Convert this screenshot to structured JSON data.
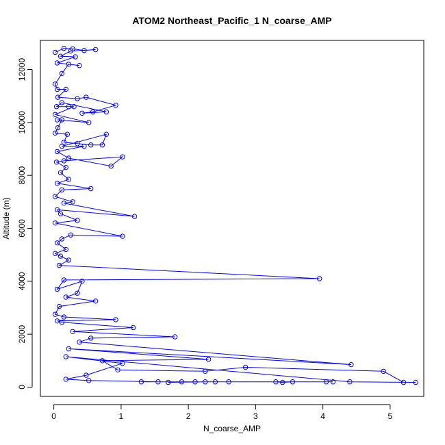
{
  "chart_data": {
    "type": "line",
    "title": "ATOM2 Northeast_Pacific_1 N_coarse_AMP",
    "xlabel": "N_coarse_AMP",
    "ylabel": "Altitude (m)",
    "xlim": [
      -0.2,
      5.5
    ],
    "ylim": [
      -350,
      13100
    ],
    "x_ticks": [
      0,
      1,
      2,
      3,
      4,
      5
    ],
    "y_ticks": [
      0,
      2000,
      4000,
      6000,
      8000,
      10000,
      12000
    ],
    "grid": false,
    "marker": "open-circle",
    "color": "#0000ff",
    "series": [
      {
        "points": [
          [
            0.02,
            12650
          ],
          [
            0.15,
            12800
          ],
          [
            0.28,
            12780
          ],
          [
            0.45,
            12720
          ],
          [
            0.62,
            12750
          ],
          [
            0.25,
            12700
          ],
          [
            0.1,
            12500
          ],
          [
            0.32,
            12480
          ],
          [
            0.05,
            12250
          ],
          [
            0.38,
            12150
          ],
          [
            0.22,
            12200
          ],
          [
            0.12,
            11850
          ],
          [
            0.02,
            11450
          ],
          [
            0.05,
            11250
          ],
          [
            0.18,
            11250
          ],
          [
            0.06,
            10950
          ],
          [
            0.35,
            10900
          ],
          [
            0.48,
            10950
          ],
          [
            0.92,
            10650
          ],
          [
            0.58,
            10400
          ],
          [
            0.42,
            10350
          ],
          [
            0.78,
            10400
          ],
          [
            0.12,
            10750
          ],
          [
            0.04,
            10600
          ],
          [
            0.22,
            10600
          ],
          [
            0.3,
            10600
          ],
          [
            0.02,
            10300
          ],
          [
            0.52,
            10000
          ],
          [
            0.05,
            10100
          ],
          [
            0.12,
            10100
          ],
          [
            0.06,
            9800
          ],
          [
            0.02,
            9600
          ],
          [
            0.2,
            9550
          ],
          [
            0.15,
            9250
          ],
          [
            0.35,
            9200
          ],
          [
            0.55,
            9150
          ],
          [
            0.72,
            9150
          ],
          [
            0.78,
            9550
          ],
          [
            0.12,
            9100
          ],
          [
            0.45,
            9100
          ],
          [
            0.05,
            8900
          ],
          [
            0.22,
            8650
          ],
          [
            0.85,
            8350
          ],
          [
            1.02,
            8700
          ],
          [
            0.15,
            8550
          ],
          [
            0.04,
            8500
          ],
          [
            0.18,
            8300
          ],
          [
            0.1,
            8100
          ],
          [
            0.22,
            7850
          ],
          [
            0.05,
            7700
          ],
          [
            0.55,
            7500
          ],
          [
            0.12,
            7450
          ],
          [
            0.02,
            7200
          ],
          [
            0.28,
            7000
          ],
          [
            0.15,
            6950
          ],
          [
            1.2,
            6450
          ],
          [
            0.05,
            6700
          ],
          [
            0.1,
            6550
          ],
          [
            0.35,
            6300
          ],
          [
            0.02,
            6200
          ],
          [
            1.02,
            5700
          ],
          [
            0.25,
            5750
          ],
          [
            0.12,
            5600
          ],
          [
            0.05,
            5450
          ],
          [
            0.18,
            5200
          ],
          [
            0.02,
            5050
          ],
          [
            0.1,
            4950
          ],
          [
            0.22,
            4800
          ],
          [
            0.08,
            4600
          ],
          [
            3.95,
            4100
          ],
          [
            0.15,
            4050
          ],
          [
            0.05,
            3700
          ],
          [
            0.42,
            4000
          ],
          [
            0.35,
            3550
          ],
          [
            0.18,
            3400
          ],
          [
            0.62,
            3250
          ],
          [
            0.08,
            3050
          ],
          [
            0.02,
            2750
          ],
          [
            0.15,
            2650
          ],
          [
            0.92,
            2550
          ],
          [
            0.05,
            2500
          ],
          [
            0.12,
            2450
          ],
          [
            1.18,
            2250
          ],
          [
            0.28,
            2100
          ],
          [
            1.8,
            1900
          ],
          [
            0.55,
            1850
          ],
          [
            0.38,
            1700
          ],
          [
            4.42,
            850
          ],
          [
            0.22,
            1450
          ],
          [
            2.3,
            1050
          ],
          [
            0.72,
            1000
          ],
          [
            0.95,
            650
          ],
          [
            2.25,
            600
          ],
          [
            2.85,
            750
          ],
          [
            4.9,
            600
          ],
          [
            5.2,
            180
          ],
          [
            5.38,
            180
          ],
          [
            4.4,
            200
          ],
          [
            0.18,
            1150
          ],
          [
            1.02,
            900
          ],
          [
            0.48,
            450
          ],
          [
            0.18,
            300
          ],
          [
            0.52,
            250
          ],
          [
            1.55,
            200
          ],
          [
            1.3,
            200
          ],
          [
            1.9,
            200
          ],
          [
            2.1,
            200
          ],
          [
            2.4,
            200
          ],
          [
            2.6,
            200
          ],
          [
            3.3,
            200
          ],
          [
            3.4,
            180
          ],
          [
            3.55,
            200
          ],
          [
            4.05,
            200
          ],
          [
            4.15,
            200
          ],
          [
            2.25,
            200
          ],
          [
            1.7,
            180
          ]
        ]
      }
    ]
  }
}
